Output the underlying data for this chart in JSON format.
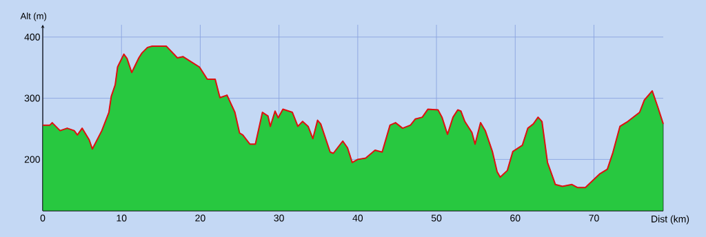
{
  "chart_data": {
    "type": "area",
    "xlabel": "Dist (km)",
    "ylabel": "Alt (m)",
    "x": [
      0,
      0.9,
      1.2,
      2.2,
      3.1,
      4.0,
      4.4,
      5.0,
      5.9,
      6.3,
      6.9,
      7.5,
      8.4,
      8.7,
      9.2,
      9.5,
      10.3,
      10.7,
      11.3,
      12.2,
      12.6,
      13.3,
      13.9,
      15.7,
      17.1,
      17.8,
      18.9,
      19.9,
      20.9,
      21.9,
      22.5,
      23.4,
      24.4,
      25.0,
      25.4,
      26.3,
      27.0,
      27.9,
      28.6,
      28.9,
      29.5,
      29.9,
      30.5,
      31.7,
      32.4,
      33.0,
      33.7,
      34.3,
      34.9,
      35.3,
      36.5,
      36.9,
      38.1,
      38.7,
      39.3,
      40.0,
      41.0,
      42.2,
      43.1,
      44.1,
      44.8,
      45.7,
      46.7,
      47.3,
      48.2,
      48.9,
      50.2,
      50.7,
      51.4,
      52.1,
      52.7,
      53.1,
      53.6,
      54.5,
      54.9,
      55.6,
      56.2,
      57.1,
      57.7,
      58.1,
      59.0,
      59.7,
      60.9,
      61.6,
      62.3,
      62.9,
      63.4,
      64.1,
      65.1,
      66.0,
      67.2,
      67.9,
      68.9,
      69.8,
      70.7,
      71.7,
      72.4,
      73.3,
      74.3,
      75.8,
      76.4,
      77.4,
      78.1,
      78.8
    ],
    "series": [
      {
        "color": "#28c840",
        "values": [
          256,
          256,
          260,
          247,
          251,
          247,
          240,
          251,
          232,
          217,
          232,
          247,
          277,
          303,
          322,
          351,
          372,
          365,
          342,
          366,
          374,
          383,
          385,
          385,
          366,
          368,
          359,
          351,
          331,
          331,
          301,
          305,
          277,
          243,
          240,
          225,
          225,
          277,
          271,
          254,
          279,
          268,
          282,
          277,
          254,
          262,
          254,
          234,
          264,
          258,
          212,
          210,
          230,
          219,
          195,
          200,
          202,
          215,
          212,
          256,
          260,
          251,
          256,
          266,
          269,
          282,
          281,
          269,
          241,
          269,
          281,
          279,
          262,
          244,
          225,
          260,
          247,
          213,
          180,
          171,
          182,
          213,
          223,
          251,
          258,
          269,
          262,
          195,
          159,
          156,
          159,
          154,
          154,
          165,
          176,
          184,
          211,
          254,
          262,
          277,
          297,
          312,
          286,
          258
        ]
      },
      {
        "type": "line",
        "color": "#e01010",
        "values": [
          256,
          256,
          260,
          247,
          251,
          247,
          240,
          251,
          232,
          217,
          232,
          247,
          277,
          303,
          322,
          351,
          372,
          365,
          342,
          366,
          374,
          383,
          385,
          385,
          366,
          368,
          359,
          351,
          331,
          331,
          301,
          305,
          277,
          243,
          240,
          225,
          225,
          277,
          271,
          254,
          279,
          268,
          282,
          277,
          254,
          262,
          254,
          234,
          264,
          258,
          212,
          210,
          230,
          219,
          195,
          200,
          202,
          215,
          212,
          256,
          260,
          251,
          256,
          266,
          269,
          282,
          281,
          269,
          241,
          269,
          281,
          279,
          262,
          244,
          225,
          260,
          247,
          213,
          180,
          171,
          182,
          213,
          223,
          251,
          258,
          269,
          262,
          195,
          159,
          156,
          159,
          154,
          154,
          165,
          176,
          184,
          211,
          254,
          262,
          277,
          297,
          312,
          286,
          258
        ]
      }
    ],
    "xlim": [
      0,
      78.8
    ],
    "ylim": [
      116,
      420
    ],
    "xticks": [
      0,
      10,
      20,
      30,
      40,
      50,
      60,
      70
    ],
    "yticks": [
      200,
      300,
      400
    ],
    "grid": true,
    "marker": "none"
  }
}
